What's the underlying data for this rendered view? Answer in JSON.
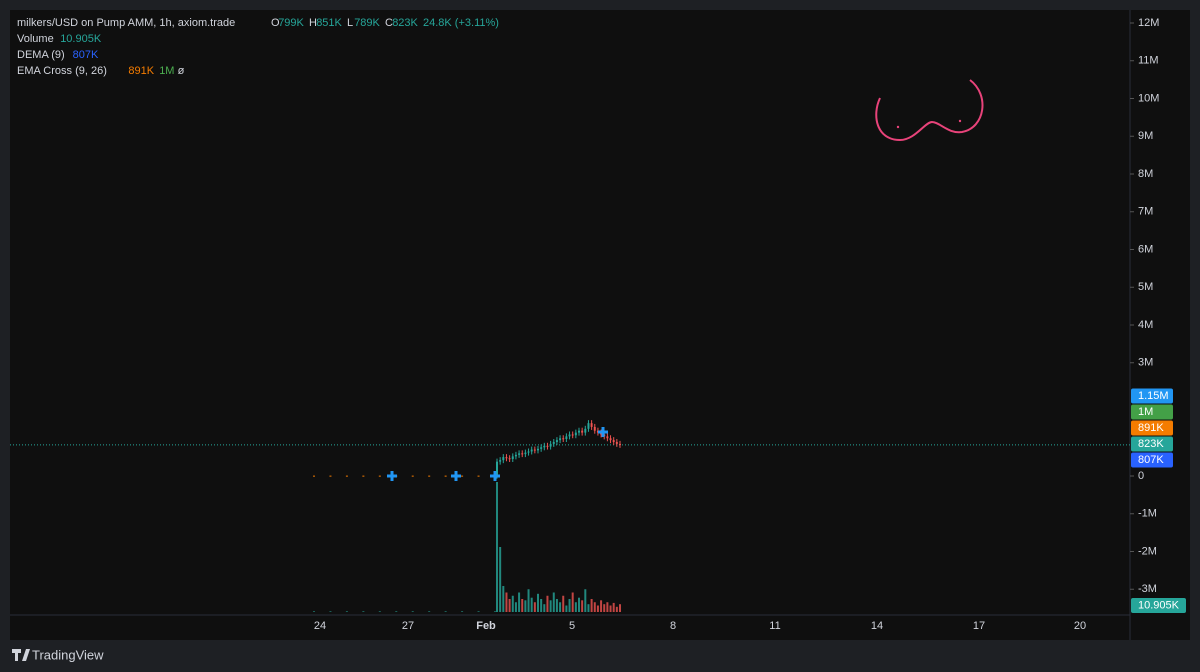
{
  "header": {
    "symbol": "milkers/USD on Pump AMM, 1h, axiom.trade",
    "o_label": "O",
    "o": "799K",
    "h_label": "H",
    "h": "851K",
    "l_label": "L",
    "l": "789K",
    "c_label": "C",
    "c": "823K",
    "change": "24.8K (+3.11%)"
  },
  "indicators": [
    {
      "name": "Volume",
      "values": [
        "10.905K"
      ],
      "colors": [
        "#26a69a"
      ]
    },
    {
      "name": "DEMA (9)",
      "values": [
        "807K"
      ],
      "colors": [
        "#2962ff"
      ]
    },
    {
      "name": "EMA Cross (9, 26)",
      "values": [
        "891K",
        "1M",
        "ø"
      ],
      "colors": [
        "#f57c00",
        "#4caf50",
        "#d1d4dc"
      ]
    }
  ],
  "price_axis": {
    "ylim": [
      -3600000,
      12600000
    ],
    "yticks": [
      {
        "value": 12000000,
        "label": "12M"
      },
      {
        "value": 11000000,
        "label": "11M"
      },
      {
        "value": 10000000,
        "label": "10M"
      },
      {
        "value": 9000000,
        "label": "9M"
      },
      {
        "value": 8000000,
        "label": "8M"
      },
      {
        "value": 7000000,
        "label": "7M"
      },
      {
        "value": 6000000,
        "label": "6M"
      },
      {
        "value": 5000000,
        "label": "5M"
      },
      {
        "value": 4000000,
        "label": "4M"
      },
      {
        "value": 3000000,
        "label": "3M"
      },
      0,
      {
        "value": -1000000,
        "label": "-1M"
      },
      {
        "value": -2000000,
        "label": "-2M"
      },
      {
        "value": -3000000,
        "label": "-3M"
      }
    ]
  },
  "price_tags": [
    {
      "label": "1.15M",
      "color": "#2196f3"
    },
    {
      "label": "1M",
      "color": "#43a047"
    },
    {
      "label": "891K",
      "color": "#f57c00"
    },
    {
      "label": "823K",
      "color": "#26a69a"
    },
    {
      "label": "807K",
      "color": "#2962ff"
    }
  ],
  "volume_tag": {
    "label": "10.905K",
    "color": "#26a69a"
  },
  "last_price": 823000,
  "time_axis": [
    "24",
    "27",
    "Feb",
    "5",
    "8",
    "11",
    "14",
    "17",
    "20"
  ],
  "closes": [
    10000,
    10000,
    10000,
    10000,
    10000,
    10000,
    10000,
    10000,
    10000,
    10000,
    10000,
    10000,
    380000,
    420000,
    500000,
    470000,
    450000,
    520000,
    560000,
    600000,
    580000,
    620000,
    650000,
    700000,
    680000,
    720000,
    760000,
    800000,
    780000,
    850000,
    900000,
    950000,
    1000000,
    980000,
    1050000,
    1100000,
    1080000,
    1150000,
    1200000,
    1150000,
    1250000,
    1400000,
    1300000,
    1200000,
    1150000,
    1100000,
    1050000,
    1000000,
    950000,
    900000,
    850000,
    823000
  ],
  "volumes": [
    1,
    1,
    1,
    1,
    1,
    1,
    1,
    1,
    1,
    1,
    1,
    1,
    200,
    100,
    40,
    30,
    20,
    25,
    15,
    30,
    20,
    18,
    35,
    22,
    15,
    28,
    20,
    12,
    25,
    18,
    30,
    20,
    15,
    25,
    10,
    20,
    30,
    15,
    22,
    18,
    35,
    12,
    20,
    15,
    10,
    18,
    12,
    15,
    10,
    14,
    8,
    12
  ],
  "brand": "TradingView"
}
